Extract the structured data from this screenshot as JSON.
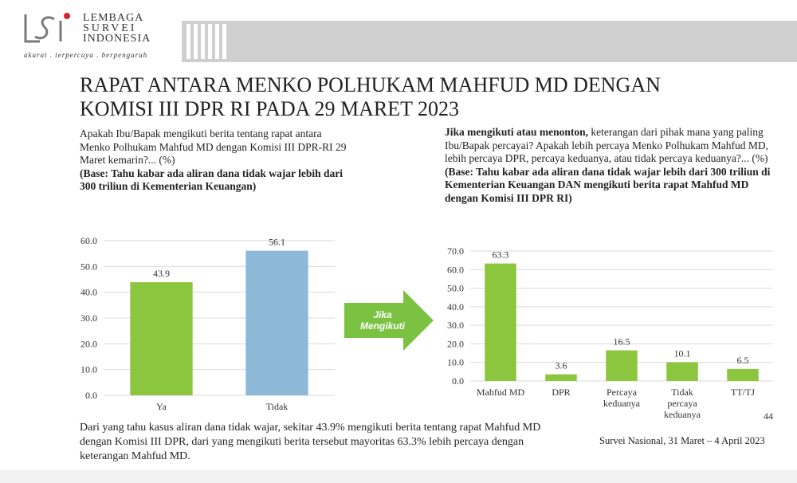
{
  "logo": {
    "line1": "LEMBAGA",
    "line2": "SURVEI",
    "line3": "INDONESIA",
    "tagline": "akurat . terpercaya . berpengaruh"
  },
  "title_line1": "RAPAT ANTARA MENKO POLHUKAM MAHFUD MD DENGAN",
  "title_line2": "KOMISI III DPR RI PADA 29 MARET 2023",
  "left_question": {
    "text": "Apakah Ibu/Bapak mengikuti berita tentang rapat antara Menko Polhukam Mahfud MD dengan Komisi III DPR-RI 29 Maret kemarin?... (%)",
    "base": "(Base: Tahu kabar ada aliran dana tidak wajar lebih dari 300 triliun di Kementerian Keuangan)"
  },
  "right_question": {
    "lead": "Jika mengikuti atau menonton,",
    "text": " keterangan dari pihak mana yang paling Ibu/Bapak percayai? Apakah lebih percaya Menko Polhukam Mahfud MD, lebih percaya DPR, percaya keduanya, atau tidak percaya keduanya?... (%)",
    "base": "(Base: Tahu kabar ada aliran dana tidak wajar lebih dari 300 triliun di Kementerian Keuangan DAN mengikuti berita rapat Mahfud MD dengan Komisi III DPR RI)"
  },
  "arrow_label_1": "Jika",
  "arrow_label_2": "Mengikuti",
  "footer_text": "Dari yang tahu kasus aliran dana tidak wajar, sekitar 43.9% mengikuti berita tentang rapat Mahfud MD dengan Komisi III DPR, dari yang mengikuti berita tersebut mayoritas 63.3% lebih percaya dengan keterangan Mahfud MD.",
  "source": "Survei Nasional, 31 Maret – 4 April 2023",
  "page_number": "44",
  "colors": {
    "green": "#8cc63f",
    "blue": "#8db8d8",
    "arrow_green": "#7cc242",
    "grid": "#d9d9d9"
  },
  "chart_data": [
    {
      "type": "bar",
      "categories": [
        "Ya",
        "Tidak"
      ],
      "values": [
        43.9,
        56.1
      ],
      "bar_colors": [
        "#8cc63f",
        "#8db8d8"
      ],
      "ylim": [
        0,
        60
      ],
      "yticks": [
        "0.0",
        "10.0",
        "20.0",
        "30.0",
        "40.0",
        "50.0",
        "60.0"
      ],
      "grid": true
    },
    {
      "type": "bar",
      "categories": [
        "Mahfud MD",
        "DPR",
        "Percaya keduanya",
        "Tidak percaya keduanya",
        "TT/TJ"
      ],
      "category_lines": [
        [
          "Mahfud MD"
        ],
        [
          "DPR"
        ],
        [
          "Percaya",
          "keduanya"
        ],
        [
          "Tidak",
          "percaya",
          "keduanya"
        ],
        [
          "TT/TJ"
        ]
      ],
      "values": [
        63.3,
        3.6,
        16.5,
        10.1,
        6.5
      ],
      "bar_color": "#8cc63f",
      "ylim": [
        0,
        70
      ],
      "yticks": [
        "0.0",
        "10.0",
        "20.0",
        "30.0",
        "40.0",
        "50.0",
        "60.0",
        "70.0"
      ],
      "grid": true
    }
  ]
}
